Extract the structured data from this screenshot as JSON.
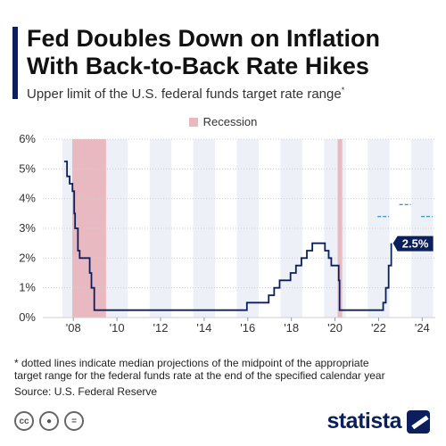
{
  "header": {
    "title": "Fed Doubles Down on Inflation With Back-to-Back Rate Hikes",
    "subtitle": "Upper limit of the U.S. federal funds target rate range",
    "subtitle_mark": "*"
  },
  "legend": {
    "recession_label": "Recession",
    "recession_color": "#e9b9c1"
  },
  "colors": {
    "line": "#0b1f5c",
    "projection": "#3a9ad9",
    "band": "#edf0f7",
    "grid": "#cfcfcf",
    "label_bg": "#0b1f5c"
  },
  "chart_data": {
    "type": "line",
    "title": "Fed Doubles Down on Inflation With Back-to-Back Rate Hikes",
    "subtitle": "Upper limit of the U.S. federal funds target rate range",
    "xlabel": "",
    "ylabel": "",
    "xlim": [
      2006.6,
      2024.6
    ],
    "ylim": [
      0,
      6
    ],
    "y_ticks": [
      0,
      1,
      2,
      3,
      4,
      5,
      6
    ],
    "y_tick_labels": [
      "0%",
      "1%",
      "2%",
      "3%",
      "4%",
      "5%",
      "6%"
    ],
    "x_ticks": [
      2008,
      2010,
      2012,
      2014,
      2016,
      2018,
      2020,
      2022,
      2024
    ],
    "x_tick_labels": [
      "'08",
      "'10",
      "'12",
      "'14",
      "'16",
      "'18",
      "'20",
      "'22",
      "'24"
    ],
    "grid": true,
    "legend_position": "top-center",
    "recessions": [
      {
        "start": 2007.95,
        "end": 2009.5
      },
      {
        "start": 2020.12,
        "end": 2020.33
      }
    ],
    "series": [
      {
        "name": "",
        "points": [
          [
            2007.58,
            5.25
          ],
          [
            2007.71,
            4.75
          ],
          [
            2007.83,
            4.5
          ],
          [
            2007.96,
            4.25
          ],
          [
            2008.04,
            3.5
          ],
          [
            2008.08,
            3.0
          ],
          [
            2008.21,
            2.25
          ],
          [
            2008.29,
            2.0
          ],
          [
            2008.75,
            1.5
          ],
          [
            2008.83,
            1.0
          ],
          [
            2008.96,
            0.25
          ],
          [
            2015.96,
            0.5
          ],
          [
            2016.96,
            0.75
          ],
          [
            2017.21,
            1.0
          ],
          [
            2017.46,
            1.25
          ],
          [
            2017.96,
            1.5
          ],
          [
            2018.21,
            1.75
          ],
          [
            2018.46,
            2.0
          ],
          [
            2018.71,
            2.25
          ],
          [
            2018.96,
            2.5
          ],
          [
            2019.54,
            2.25
          ],
          [
            2019.71,
            2.0
          ],
          [
            2019.83,
            1.75
          ],
          [
            2020.17,
            1.25
          ],
          [
            2020.21,
            0.25
          ],
          [
            2022.21,
            0.5
          ],
          [
            2022.33,
            1.0
          ],
          [
            2022.46,
            1.75
          ],
          [
            2022.58,
            2.5
          ]
        ]
      }
    ],
    "projections": [
      {
        "year": 2022,
        "value": 3.4
      },
      {
        "year": 2023,
        "value": 3.8
      },
      {
        "year": 2024,
        "value": 3.4
      }
    ],
    "annotations": [
      {
        "x": 2022.58,
        "y": 2.5,
        "text": "2.5%"
      }
    ]
  },
  "footnote": "* dotted lines indicate median projections of the midpoint of the appropriate\n   target range for the federal funds rate at the end of the specified calendar year",
  "source": "Source: U.S. Federal Reserve",
  "license_icons": [
    "creative-commons-icon",
    "attribution-icon",
    "no-derivatives-icon"
  ],
  "brand": {
    "name": "statista"
  }
}
